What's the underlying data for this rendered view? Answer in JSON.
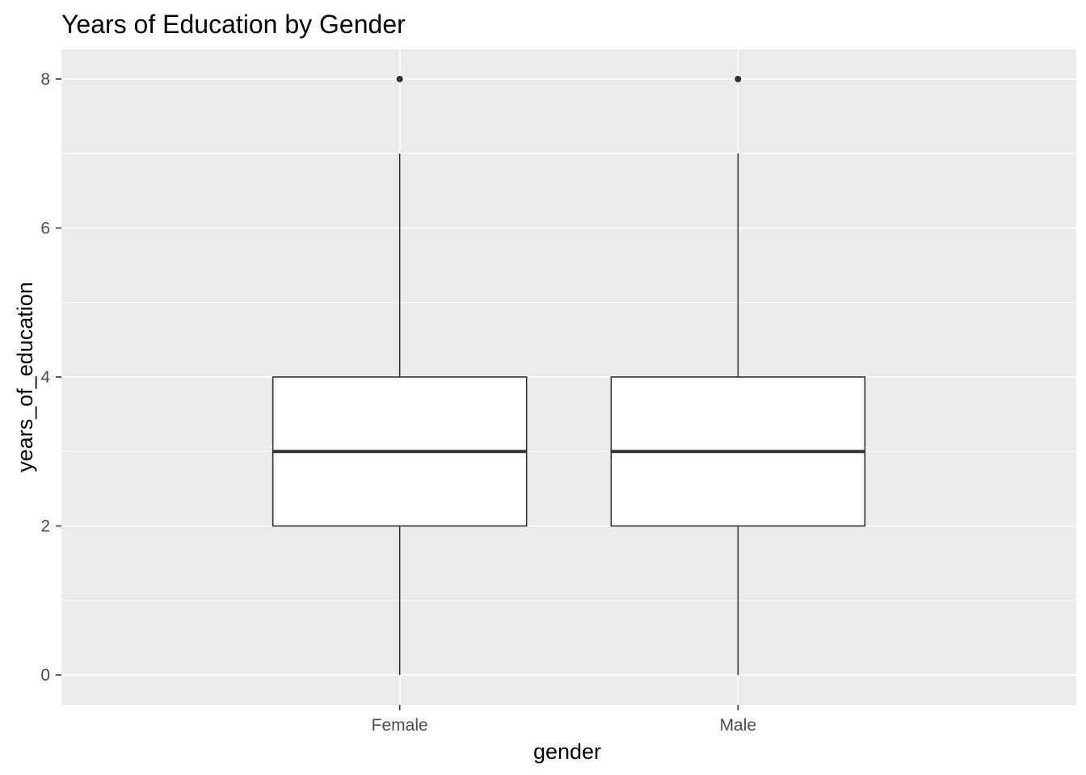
{
  "chart_data": {
    "type": "boxplot",
    "title": "Years of Education by Gender",
    "xlabel": "gender",
    "ylabel": "years_of_education",
    "categories": [
      "Female",
      "Male"
    ],
    "ylim": [
      -0.4,
      8.4
    ],
    "y_ticks": [
      0,
      2,
      4,
      6,
      8
    ],
    "y_tick_labels": [
      "0",
      "2",
      "4",
      "6",
      "8"
    ],
    "boxes": [
      {
        "category": "Female",
        "whisker_low": 0,
        "q1": 2,
        "median": 3,
        "q3": 4,
        "whisker_high": 7,
        "outliers": [
          8
        ]
      },
      {
        "category": "Male",
        "whisker_low": 0,
        "q1": 2,
        "median": 3,
        "q3": 4,
        "whisker_high": 7,
        "outliers": [
          8
        ]
      }
    ],
    "grid": true,
    "legend": "none",
    "colors": {
      "panel_background": "#EBEBEB",
      "grid": "#FFFFFF",
      "box_fill": "#FFFFFF",
      "box_line": "#333333",
      "tick_text": "#4D4D4D",
      "tick_mark": "#333333"
    }
  }
}
